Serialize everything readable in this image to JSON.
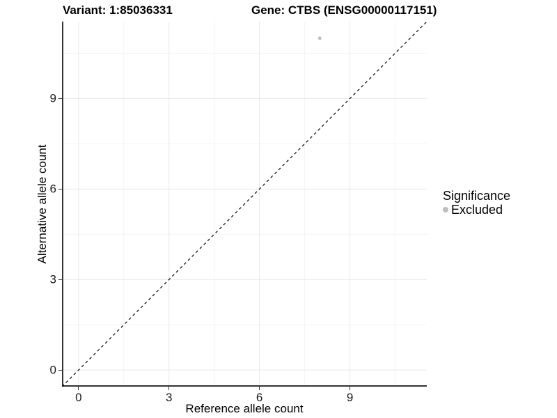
{
  "chart_data": {
    "type": "scatter",
    "titles": {
      "variant": "Variant: 1:85036331",
      "gene": "Gene: CTBS (ENSG00000117151)"
    },
    "xlabel": "Reference allele count",
    "ylabel": "Alternative allele count",
    "xlim": [
      -0.55,
      11.55
    ],
    "ylim": [
      -0.55,
      11.55
    ],
    "x_ticks": {
      "major": [
        0,
        3,
        6,
        9
      ],
      "minor": [
        1.5,
        4.5,
        7.5,
        10.5
      ]
    },
    "y_ticks": {
      "major": [
        0,
        3,
        6,
        9
      ],
      "minor": [
        1.5,
        4.5,
        7.5,
        10.5
      ]
    },
    "grid": {
      "show": true,
      "major_color": "#e8e8e8",
      "minor_color": "#f4f4f4"
    },
    "axis": {
      "line_color": "#333333",
      "tick_color": "#333333",
      "tick_label_color": "#1a1a1a"
    },
    "reference_line": {
      "kind": "identity",
      "equation": "y = x",
      "line_style": "dashed",
      "color": "#000000"
    },
    "series": [
      {
        "name": "Excluded",
        "color": "#bebebe",
        "point_radius": 2.5,
        "points": [
          {
            "x": 8,
            "y": 11
          }
        ]
      }
    ],
    "legend": {
      "title": "Significance",
      "position": "right",
      "entries": [
        {
          "label": "Excluded",
          "color": "#bebebe"
        }
      ]
    }
  }
}
